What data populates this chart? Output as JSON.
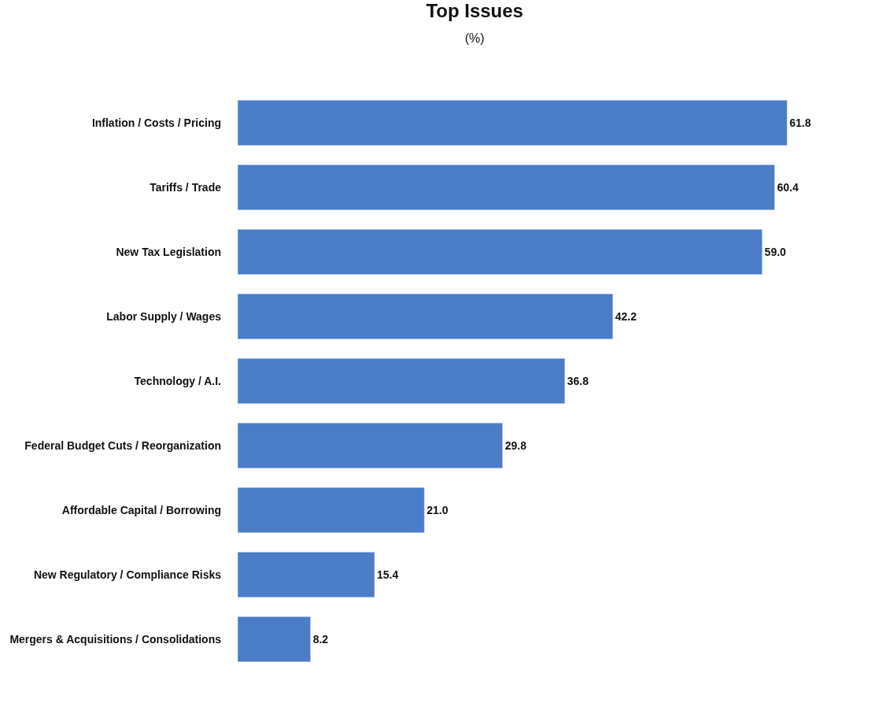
{
  "chart_data": {
    "type": "bar",
    "orientation": "horizontal",
    "title": "Top Issues",
    "subtitle": "(%)",
    "categories": [
      "Inflation / Costs / Pricing",
      "Tariffs / Trade",
      "New Tax Legislation",
      "Labor Supply / Wages",
      "Technology / A.I.",
      "Federal Budget Cuts / Reorganization",
      "Affordable Capital / Borrowing",
      "New Regulatory / Compliance Risks",
      "Mergers & Acquisitions / Consolidations"
    ],
    "values": [
      61.8,
      60.4,
      59.0,
      42.2,
      36.8,
      29.8,
      21.0,
      15.4,
      8.2
    ],
    "value_labels": [
      "61.8",
      "60.4",
      "59.0",
      "42.2",
      "36.8",
      "29.8",
      "21.0",
      "15.4",
      "8.2"
    ],
    "color": "#4a7cc8",
    "legend": false,
    "tick_labels": "y"
  }
}
